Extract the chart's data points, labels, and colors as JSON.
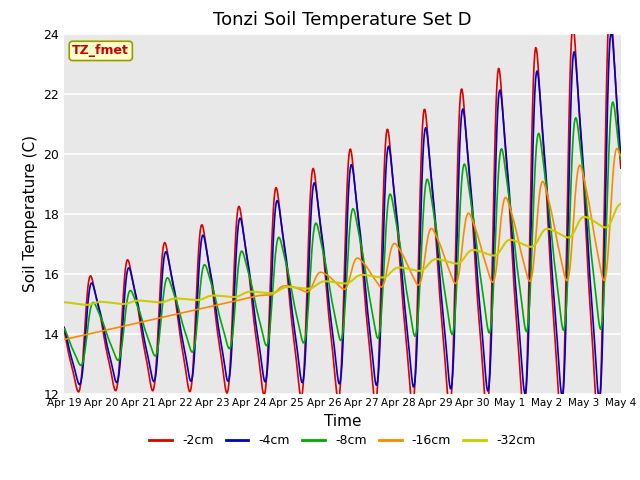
{
  "title": "Tonzi Soil Temperature Set D",
  "xlabel": "Time",
  "ylabel": "Soil Temperature (C)",
  "ylim": [
    12,
    24
  ],
  "xtick_labels": [
    "Apr 19",
    "Apr 20",
    "Apr 21",
    "Apr 22",
    "Apr 23",
    "Apr 24",
    "Apr 25",
    "Apr 26",
    "Apr 27",
    "Apr 28",
    "Apr 29",
    "Apr 30",
    "May 1",
    "May 2",
    "May 3",
    "May 4"
  ],
  "legend_label": "TZ_fmet",
  "legend_text_color": "#cc0000",
  "legend_bg_color": "#ffffcc",
  "series_labels": [
    "-2cm",
    "-4cm",
    "-8cm",
    "-16cm",
    "-32cm"
  ],
  "series_colors": [
    "#dd0000",
    "#0000cc",
    "#00aa00",
    "#ff8800",
    "#cccc00"
  ],
  "bg_color": "#e8e8e8",
  "title_fontsize": 13,
  "axis_label_fontsize": 11
}
